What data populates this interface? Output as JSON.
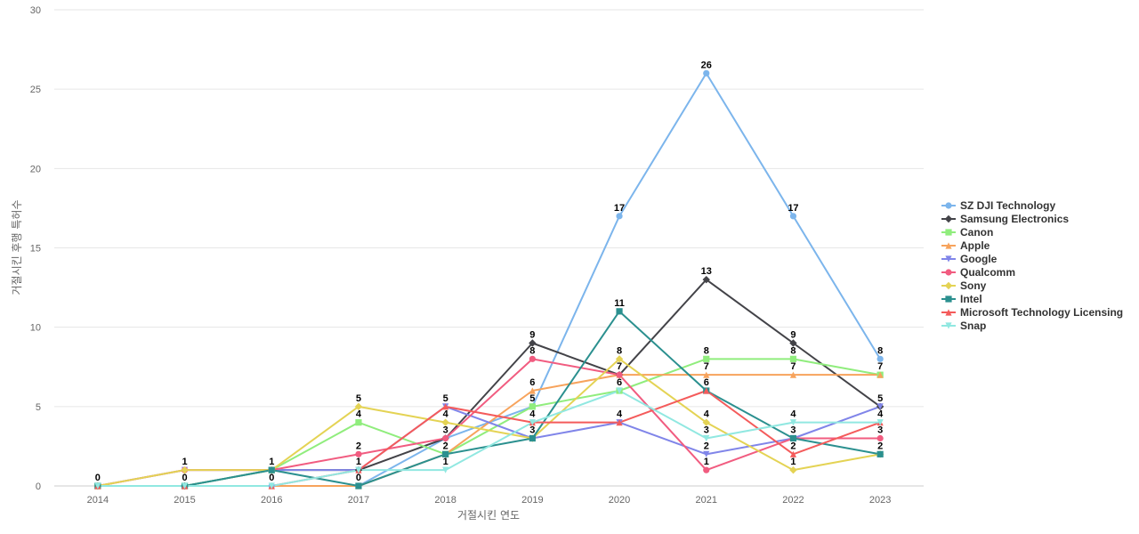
{
  "chart_data": {
    "type": "line",
    "title": "",
    "xlabel": "거절시킨 연도",
    "ylabel": "거절시킨 후행 특허수",
    "ylim": [
      0,
      30
    ],
    "yticks": [
      0,
      5,
      10,
      15,
      20,
      25,
      30
    ],
    "grid": true,
    "legend_position": "right",
    "categories": [
      "2014",
      "2015",
      "2016",
      "2017",
      "2018",
      "2019",
      "2020",
      "2021",
      "2022",
      "2023"
    ],
    "series": [
      {
        "name": "SZ DJI Technology",
        "color": "#7cb5ec",
        "marker": "circle",
        "values": [
          0,
          0,
          0,
          0,
          3,
          5,
          17,
          26,
          17,
          8
        ]
      },
      {
        "name": "Samsung Electronics",
        "color": "#434348",
        "marker": "diamond",
        "values": [
          0,
          0,
          1,
          1,
          3,
          9,
          7,
          13,
          9,
          5
        ]
      },
      {
        "name": "Canon",
        "color": "#90ed7d",
        "marker": "square",
        "values": [
          0,
          0,
          1,
          4,
          2,
          5,
          6,
          8,
          8,
          7
        ]
      },
      {
        "name": "Apple",
        "color": "#f7a35c",
        "marker": "triangle",
        "values": [
          0,
          0,
          0,
          0,
          2,
          6,
          7,
          7,
          7,
          7
        ]
      },
      {
        "name": "Google",
        "color": "#8085e9",
        "marker": "triangle-down",
        "values": [
          0,
          1,
          1,
          1,
          5,
          3,
          4,
          2,
          3,
          5
        ]
      },
      {
        "name": "Qualcomm",
        "color": "#f15c80",
        "marker": "circle",
        "values": [
          0,
          1,
          1,
          2,
          3,
          8,
          7,
          1,
          3,
          3
        ]
      },
      {
        "name": "Sony",
        "color": "#e4d354",
        "marker": "diamond",
        "values": [
          0,
          1,
          1,
          5,
          4,
          3,
          8,
          4,
          1,
          2
        ]
      },
      {
        "name": "Intel",
        "color": "#2b908f",
        "marker": "square",
        "values": [
          0,
          0,
          1,
          0,
          2,
          3,
          11,
          6,
          3,
          2
        ]
      },
      {
        "name": "Microsoft Technology Licensing",
        "color": "#f45b5b",
        "marker": "triangle",
        "values": [
          0,
          0,
          0,
          1,
          5,
          4,
          4,
          6,
          2,
          4
        ]
      },
      {
        "name": "Snap",
        "color": "#91e8e1",
        "marker": "triangle-down",
        "values": [
          0,
          0,
          0,
          1,
          1,
          4,
          6,
          3,
          4,
          4
        ]
      }
    ],
    "data_labels": [
      {
        "x": "2014",
        "y": 0,
        "text": "0"
      },
      {
        "x": "2015",
        "y": 1,
        "text": "1"
      },
      {
        "x": "2015",
        "y": 0,
        "text": "0"
      },
      {
        "x": "2016",
        "y": 1,
        "text": "1"
      },
      {
        "x": "2016",
        "y": 0,
        "text": "0"
      },
      {
        "x": "2017",
        "y": 5,
        "text": "5"
      },
      {
        "x": "2017",
        "y": 4,
        "text": "4"
      },
      {
        "x": "2017",
        "y": 2,
        "text": "2"
      },
      {
        "x": "2017",
        "y": 1,
        "text": "1"
      },
      {
        "x": "2017",
        "y": 0,
        "text": "0"
      },
      {
        "x": "2018",
        "y": 5,
        "text": "5"
      },
      {
        "x": "2018",
        "y": 4,
        "text": "4"
      },
      {
        "x": "2018",
        "y": 3,
        "text": "3"
      },
      {
        "x": "2018",
        "y": 2,
        "text": "2"
      },
      {
        "x": "2018",
        "y": 1,
        "text": "1"
      },
      {
        "x": "2019",
        "y": 9,
        "text": "9"
      },
      {
        "x": "2019",
        "y": 8,
        "text": "8"
      },
      {
        "x": "2019",
        "y": 6,
        "text": "6"
      },
      {
        "x": "2019",
        "y": 5,
        "text": "5"
      },
      {
        "x": "2019",
        "y": 4,
        "text": "4"
      },
      {
        "x": "2019",
        "y": 3,
        "text": "3"
      },
      {
        "x": "2020",
        "y": 17,
        "text": "17"
      },
      {
        "x": "2020",
        "y": 11,
        "text": "11"
      },
      {
        "x": "2020",
        "y": 8,
        "text": "8"
      },
      {
        "x": "2020",
        "y": 7,
        "text": "7"
      },
      {
        "x": "2020",
        "y": 6,
        "text": "6"
      },
      {
        "x": "2020",
        "y": 4,
        "text": "4"
      },
      {
        "x": "2021",
        "y": 26,
        "text": "26"
      },
      {
        "x": "2021",
        "y": 13,
        "text": "13"
      },
      {
        "x": "2021",
        "y": 8,
        "text": "8"
      },
      {
        "x": "2021",
        "y": 7,
        "text": "7"
      },
      {
        "x": "2021",
        "y": 6,
        "text": "6"
      },
      {
        "x": "2021",
        "y": 4,
        "text": "4"
      },
      {
        "x": "2021",
        "y": 3,
        "text": "3"
      },
      {
        "x": "2021",
        "y": 2,
        "text": "2"
      },
      {
        "x": "2021",
        "y": 1,
        "text": "1"
      },
      {
        "x": "2022",
        "y": 17,
        "text": "17"
      },
      {
        "x": "2022",
        "y": 9,
        "text": "9"
      },
      {
        "x": "2022",
        "y": 8,
        "text": "8"
      },
      {
        "x": "2022",
        "y": 7,
        "text": "7"
      },
      {
        "x": "2022",
        "y": 4,
        "text": "4"
      },
      {
        "x": "2022",
        "y": 3,
        "text": "3"
      },
      {
        "x": "2022",
        "y": 2,
        "text": "2"
      },
      {
        "x": "2022",
        "y": 1,
        "text": "1"
      },
      {
        "x": "2023",
        "y": 8,
        "text": "8"
      },
      {
        "x": "2023",
        "y": 7,
        "text": "7"
      },
      {
        "x": "2023",
        "y": 5,
        "text": "5"
      },
      {
        "x": "2023",
        "y": 4,
        "text": "4"
      },
      {
        "x": "2023",
        "y": 3,
        "text": "3"
      },
      {
        "x": "2023",
        "y": 2,
        "text": "2"
      }
    ]
  }
}
